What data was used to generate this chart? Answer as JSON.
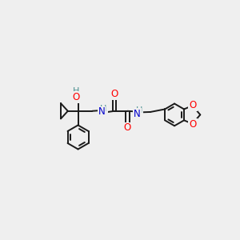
{
  "bg_color": "#efefef",
  "bond_color": "#1a1a1a",
  "bond_width": 1.4,
  "atom_colors": {
    "O": "#ff0000",
    "N": "#0000cc",
    "H": "#4a9090",
    "C": "#1a1a1a"
  },
  "font_size": 8.5,
  "fig_size": [
    3.0,
    3.0
  ],
  "dpi": 100
}
